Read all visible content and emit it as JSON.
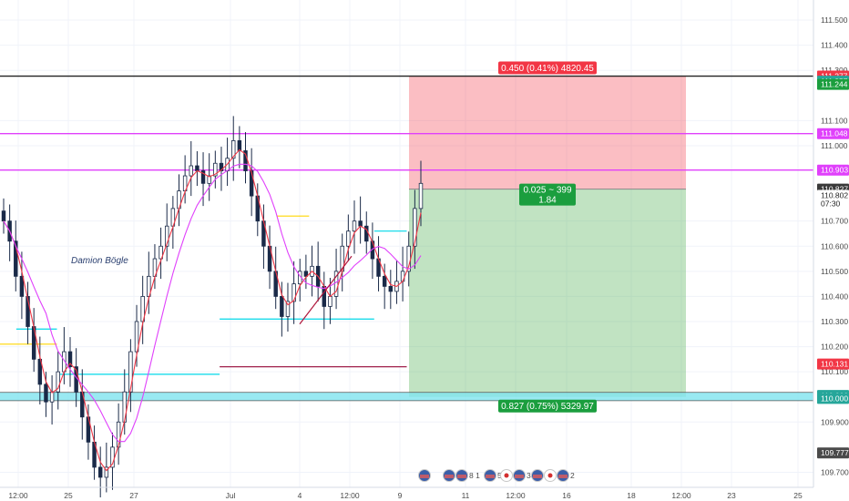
{
  "chart_data": {
    "type": "candlestick",
    "author_label": "Damion Bögle",
    "y_axis": {
      "range": [
        109.64,
        111.58
      ],
      "ticks": [
        "111.500",
        "111.400",
        "111.300",
        "111.100",
        "111.000",
        "110.700",
        "110.600",
        "110.500",
        "110.400",
        "110.300",
        "110.200",
        "110.100",
        "109.900",
        "109.700"
      ],
      "tick_values": [
        111.5,
        111.4,
        111.3,
        111.1,
        111.0,
        110.7,
        110.6,
        110.5,
        110.4,
        110.3,
        110.2,
        110.1,
        109.9,
        109.7
      ]
    },
    "x_axis": {
      "ticks": [
        "12:00",
        "25",
        "27",
        "Jul",
        "4",
        "12:00",
        "9",
        "11",
        "12:00",
        "16",
        "18",
        "12:00",
        "23",
        "25"
      ]
    },
    "price_tags": [
      {
        "label": "111.277",
        "value": 111.277,
        "color": "#f23645"
      },
      {
        "label": "111.257",
        "value": 111.257,
        "color": "#26a69a"
      },
      {
        "label": "111.244",
        "value": 111.244,
        "color": "#1b9e3e"
      },
      {
        "label": "111.048",
        "value": 111.048,
        "color": "#e040fb"
      },
      {
        "label": "110.903",
        "value": 110.903,
        "color": "#e040fb"
      },
      {
        "label": "110.827",
        "value": 110.827,
        "color": "#3a3a3a"
      },
      {
        "label": "110.802",
        "value": 110.802,
        "color": "#ffffff",
        "text_color": "#222222"
      },
      {
        "label": "07:30",
        "value": 110.77,
        "color": "#ffffff",
        "text_color": "#222222"
      },
      {
        "label": "110.131",
        "value": 110.131,
        "color": "#f23645"
      },
      {
        "label": "110.000",
        "value": 110.006,
        "color": "#26a69a"
      },
      {
        "label": "110.000",
        "value": 109.994,
        "color": "#26a69a"
      },
      {
        "label": "109.777",
        "value": 109.777,
        "color": "#4a4a4a"
      }
    ],
    "horizontal_lines": [
      {
        "value": 111.277,
        "color": "#222222"
      },
      {
        "value": 111.048,
        "color": "#e040fb"
      },
      {
        "value": 110.903,
        "color": "#e040fb"
      }
    ],
    "position": {
      "entry": 110.827,
      "stop": 111.277,
      "target": 110.0,
      "target_label": "0.827 (0.75%) 5329.97",
      "stop_label": "0.450 (0.41%) 4820.45",
      "center_label_1": "0.025 ~ 399",
      "center_label_2": "1.84"
    },
    "support_zone": {
      "low": 109.985,
      "high": 110.018
    },
    "level_segments": [
      {
        "from": 0.02,
        "to": 0.07,
        "value": 110.27,
        "color": "#00d8e8"
      },
      {
        "from": 0.0,
        "to": 0.07,
        "value": 110.21,
        "color": "#ffd600"
      },
      {
        "from": 0.07,
        "to": 0.27,
        "value": 110.09,
        "color": "#00d8e8"
      },
      {
        "from": 0.27,
        "to": 0.46,
        "value": 110.31,
        "color": "#00d8e8"
      },
      {
        "from": 0.27,
        "to": 0.5,
        "value": 110.12,
        "color": "#a0204a"
      },
      {
        "from": 0.34,
        "to": 0.38,
        "value": 110.72,
        "color": "#ffd600"
      },
      {
        "from": 0.46,
        "to": 0.5,
        "value": 110.66,
        "color": "#00d8e8"
      }
    ],
    "series": [
      {
        "name": "",
        "color": "#1a2a48",
        "kind": "close"
      },
      {
        "name": "",
        "color": "#f23645",
        "kind": "ma_fast"
      },
      {
        "name": "",
        "color": "#e040fb",
        "kind": "ma_slow"
      }
    ],
    "closes": [
      110.7,
      110.62,
      110.48,
      110.4,
      110.28,
      110.15,
      110.05,
      109.98,
      110.02,
      110.1,
      110.18,
      110.12,
      110.02,
      109.92,
      109.82,
      109.72,
      109.68,
      109.72,
      109.8,
      109.9,
      110.02,
      110.18,
      110.3,
      110.4,
      110.48,
      110.55,
      110.6,
      110.68,
      110.75,
      110.82,
      110.88,
      110.92,
      110.9,
      110.85,
      110.88,
      110.93,
      110.9,
      110.95,
      111.02,
      110.98,
      110.9,
      110.8,
      110.7,
      110.6,
      110.5,
      110.4,
      110.32,
      110.38,
      110.45,
      110.5,
      110.48,
      110.52,
      110.44,
      110.36,
      110.4,
      110.5,
      110.6,
      110.66,
      110.7,
      110.68,
      110.62,
      110.55,
      110.48,
      110.44,
      110.42,
      110.46,
      110.5,
      110.6,
      110.75,
      110.85
    ]
  },
  "calendar_events": {
    "group1": "2",
    "group2": "8 1",
    "group3": "5 1",
    "group4": "34 2",
    "group5": "2",
    "group6": "2"
  },
  "colors": {
    "background": "#ffffff",
    "grid": "#f0f3fa",
    "axis_text": "#4a4a4a",
    "stop_zone": "#f23645",
    "target_zone": "#4caf50"
  }
}
